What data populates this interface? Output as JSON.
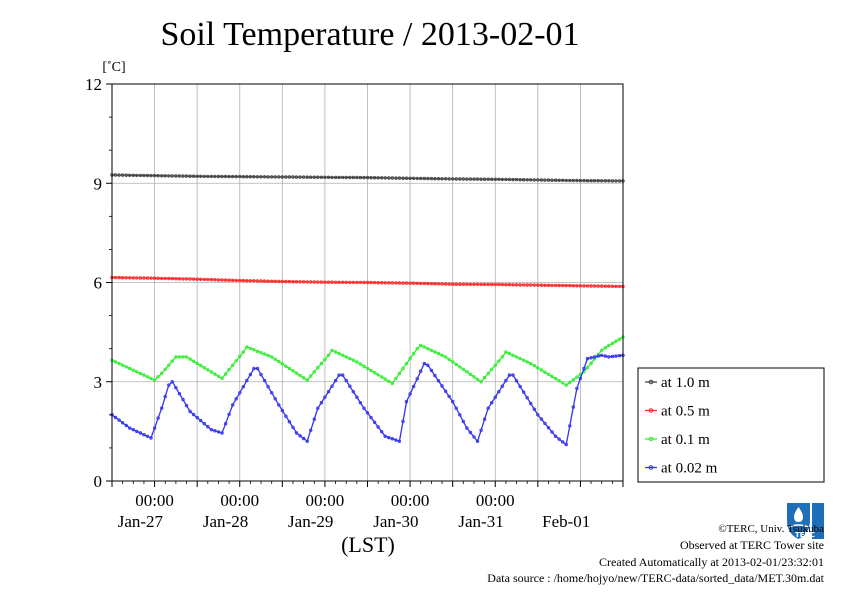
{
  "chart_data": {
    "type": "line",
    "title": "Soil Temperature / 2013-02-01",
    "unit_label": "[˚C]",
    "xlabel": "(LST)",
    "ylim": [
      0,
      12
    ],
    "y_ticks": [
      "0",
      "3",
      "6",
      "9",
      "12"
    ],
    "x_time_labels": [
      "00:00",
      "00:00",
      "00:00",
      "00:00",
      "00:00"
    ],
    "x_date_labels": [
      "Jan-27",
      "Jan-28",
      "Jan-29",
      "Jan-30",
      "Jan-31",
      "Feb-01"
    ],
    "x_range_hours": [
      0,
      144
    ],
    "grid": true,
    "legend_position": "right",
    "series": [
      {
        "name": "at 1.0 m",
        "color": "#444444",
        "x": [
          0,
          12,
          24,
          36,
          48,
          60,
          72,
          84,
          96,
          108,
          120,
          132,
          144
        ],
        "values": [
          9.25,
          9.23,
          9.21,
          9.2,
          9.19,
          9.18,
          9.17,
          9.15,
          9.13,
          9.12,
          9.1,
          9.08,
          9.07
        ]
      },
      {
        "name": "at 0.5 m",
        "color": "#ff2a2a",
        "x": [
          0,
          12,
          24,
          36,
          48,
          60,
          72,
          84,
          96,
          108,
          120,
          132,
          144
        ],
        "values": [
          6.15,
          6.13,
          6.1,
          6.06,
          6.03,
          6.01,
          6.0,
          5.98,
          5.95,
          5.94,
          5.92,
          5.9,
          5.88
        ]
      },
      {
        "name": "at 0.1 m",
        "color": "#33ee33",
        "x": [
          0,
          5,
          12,
          14,
          18,
          21,
          31,
          37,
          38,
          45,
          55,
          61,
          62,
          69,
          79,
          86,
          87,
          94,
          104,
          110,
          111,
          118,
          128,
          133,
          138,
          140,
          144
        ],
        "values": [
          3.65,
          3.4,
          3.05,
          3.25,
          3.75,
          3.75,
          3.1,
          3.9,
          4.05,
          3.75,
          3.05,
          3.8,
          3.95,
          3.6,
          2.95,
          4.0,
          4.1,
          3.75,
          3.0,
          3.75,
          3.9,
          3.55,
          2.9,
          3.3,
          3.95,
          4.1,
          4.35
        ]
      },
      {
        "name": "at 0.02 m",
        "color": "#3333ee",
        "x": [
          0,
          5,
          11,
          14,
          16,
          17,
          22,
          28,
          31,
          34,
          40,
          41,
          47,
          52,
          55,
          58,
          64,
          65,
          71,
          77,
          81,
          83,
          88,
          89,
          96,
          100,
          103,
          106,
          112,
          113,
          120,
          125,
          128,
          131,
          134,
          138,
          140,
          144
        ],
        "values": [
          2.0,
          1.6,
          1.3,
          2.2,
          2.9,
          3.0,
          2.1,
          1.55,
          1.45,
          2.3,
          3.4,
          3.4,
          2.3,
          1.45,
          1.2,
          2.2,
          3.2,
          3.2,
          2.2,
          1.35,
          1.2,
          2.4,
          3.55,
          3.5,
          2.4,
          1.6,
          1.2,
          2.2,
          3.2,
          3.2,
          2.0,
          1.35,
          1.1,
          2.8,
          3.7,
          3.8,
          3.75,
          3.8
        ]
      }
    ]
  },
  "credits": {
    "copyright": "©TERC, Univ. Tsukuba",
    "observed": "Observed at TERC Tower site",
    "created": "Created Automatically at 2013-02-01/23:32:01",
    "source": "Data source : /home/hojyo/new/TERC-data/sorted_data/MET.30m.dat",
    "logo_text": "TERC"
  }
}
